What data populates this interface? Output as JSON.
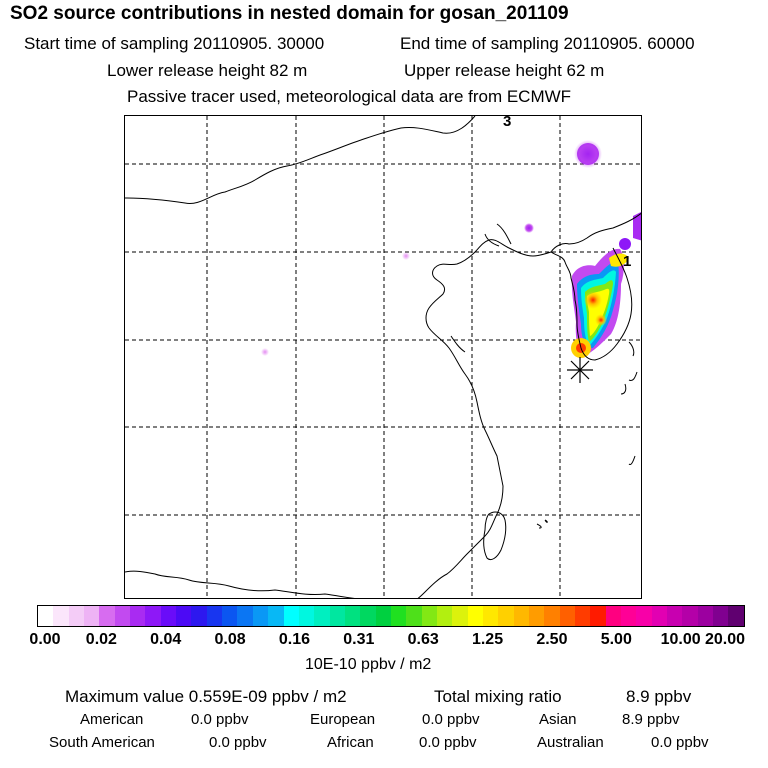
{
  "title": "SO2 source contributions in nested domain for gosan_201109",
  "sampling": {
    "start": "Start time of sampling 20110905. 30000",
    "end": "End time of sampling 20110905. 60000"
  },
  "release": {
    "lower": "Lower release height   82 m",
    "upper": "Upper release height   62 m"
  },
  "note": "Passive tracer used, meteorological data are from ECMWF",
  "map": {
    "labels": [
      "3",
      "1"
    ],
    "marker": "receptor-star"
  },
  "colorbar": {
    "ticks": [
      "0.00",
      "0.02",
      "0.04",
      "0.08",
      "0.16",
      "0.31",
      "0.63",
      "1.25",
      "2.50",
      "5.00",
      "10.00",
      "20.00"
    ],
    "colors": [
      "#ffffff",
      "#fbe6fb",
      "#f4ccf7",
      "#eeb3f5",
      "#d76cf0",
      "#c24af0",
      "#a92bf2",
      "#8e18f7",
      "#6a0cf9",
      "#4c0af5",
      "#2d18ef",
      "#1836f0",
      "#0b56f1",
      "#0b76f3",
      "#0a98f5",
      "#08b8f5",
      "#00ffff",
      "#00f7e0",
      "#00efc0",
      "#00e7a0",
      "#00e180",
      "#00d860",
      "#00d040",
      "#20e020",
      "#4ee01a",
      "#82e814",
      "#b2ef10",
      "#dcf20c",
      "#ffff00",
      "#ffe800",
      "#ffd000",
      "#ffb800",
      "#ff9c00",
      "#ff8000",
      "#ff6000",
      "#ff3c00",
      "#ff1b00",
      "#ff0080",
      "#ff0096",
      "#f800a8",
      "#e200b2",
      "#c800b0",
      "#b400a8",
      "#9c00a0",
      "#800090",
      "#600070"
    ],
    "units": "10E-10 ppbv / m2"
  },
  "stats": {
    "max_label": "Maximum value  0.559E-09 ppbv / m2",
    "total_label": "Total mixing ratio",
    "total_value": "8.9 ppbv"
  },
  "regions": [
    {
      "name": "American",
      "value": "0.0 ppbv"
    },
    {
      "name": "European",
      "value": "0.0 ppbv"
    },
    {
      "name": "Asian",
      "value": "8.9 ppbv"
    },
    {
      "name": "South American",
      "value": "0.0 ppbv"
    },
    {
      "name": "African",
      "value": "0.0 ppbv"
    },
    {
      "name": "Australian",
      "value": "0.0 ppbv"
    }
  ]
}
